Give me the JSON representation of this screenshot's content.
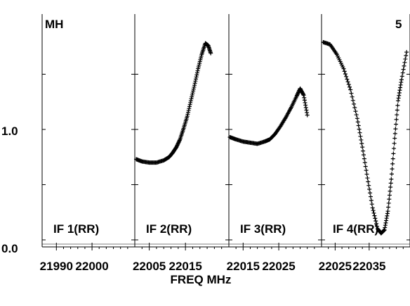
{
  "chart_data": {
    "type": "scatter",
    "ylabel_ticks": [
      "0.0",
      "1.0"
    ],
    "xlabel": "FREQ MHz",
    "corner_left": "MH",
    "corner_right": "5",
    "ylim": [
      0.0,
      1.8
    ],
    "panels": [
      {
        "label": "IF 1(RR)",
        "xlim": [
          21986,
          22012
        ],
        "ticks": [
          "21990",
          "22000"
        ],
        "tick_values": [
          21990,
          22000
        ],
        "minor_ticks": [
          21992,
          21994,
          21996,
          21998,
          22002,
          22004,
          22006,
          22008,
          22010
        ],
        "points": []
      },
      {
        "label": "IF 2(RR)",
        "xlim": [
          22001,
          22027
        ],
        "ticks": [
          "22005",
          "22015"
        ],
        "tick_values": [
          22005,
          22015
        ],
        "minor_ticks": [
          22003,
          22007,
          22009,
          22011,
          22013,
          22017,
          22019,
          22021,
          22023,
          22025
        ],
        "points": [
          [
            22001.4,
            0.73
          ],
          [
            22003.0,
            0.71
          ],
          [
            22005.0,
            0.7
          ],
          [
            22007.0,
            0.7
          ],
          [
            22009.0,
            0.72
          ],
          [
            22010.5,
            0.75
          ],
          [
            22011.5,
            0.79
          ],
          [
            22012.5,
            0.84
          ],
          [
            22013.5,
            0.91
          ],
          [
            22014.5,
            1.01
          ],
          [
            22015.5,
            1.12
          ],
          [
            22016.5,
            1.26
          ],
          [
            22017.5,
            1.4
          ],
          [
            22018.5,
            1.55
          ],
          [
            22019.5,
            1.68
          ],
          [
            22020.5,
            1.78
          ],
          [
            22021.3,
            1.76
          ],
          [
            22022.0,
            1.69
          ]
        ]
      },
      {
        "label": "IF 3(RR)",
        "xlim": [
          22011,
          22037
        ],
        "ticks": [
          "22025",
          "22015"
        ],
        "tick_values": [
          22025,
          22015
        ],
        "minor_ticks": [
          22013,
          22017,
          22019,
          22021,
          22023,
          22027,
          22029,
          22031,
          22033,
          22035
        ],
        "points": [
          [
            22011.3,
            0.93
          ],
          [
            22013.0,
            0.91
          ],
          [
            22015.0,
            0.89
          ],
          [
            22017.0,
            0.88
          ],
          [
            22019.0,
            0.87
          ],
          [
            22021.0,
            0.89
          ],
          [
            22022.5,
            0.91
          ],
          [
            22024.0,
            0.96
          ],
          [
            22025.5,
            1.03
          ],
          [
            22027.0,
            1.11
          ],
          [
            22028.5,
            1.2
          ],
          [
            22030.0,
            1.3
          ],
          [
            22031.0,
            1.37
          ],
          [
            22032.0,
            1.31
          ],
          [
            22033.0,
            1.13
          ]
        ]
      },
      {
        "label": "IF 4(RR)",
        "xlim": [
          22021,
          22047
        ],
        "ticks": [
          "22025",
          "22035"
        ],
        "tick_values": [
          22025,
          22035
        ],
        "minor_ticks": [
          22023,
          22027,
          22029,
          22031,
          22033,
          22037,
          22039,
          22041,
          22043,
          22045
        ],
        "points": [
          [
            22021.5,
            1.79
          ],
          [
            22023.5,
            1.77
          ],
          [
            22025.5,
            1.68
          ],
          [
            22027.5,
            1.55
          ],
          [
            22029.5,
            1.36
          ],
          [
            22031.5,
            1.1
          ],
          [
            22033.0,
            0.84
          ],
          [
            22034.5,
            0.56
          ],
          [
            22036.0,
            0.29
          ],
          [
            22037.5,
            0.1
          ],
          [
            22038.5,
            0.06
          ],
          [
            22039.5,
            0.09
          ],
          [
            22040.5,
            0.26
          ],
          [
            22041.5,
            0.55
          ],
          [
            22042.5,
            0.92
          ],
          [
            22043.5,
            1.26
          ],
          [
            22044.5,
            1.45
          ],
          [
            22046.0,
            1.7
          ]
        ]
      }
    ]
  }
}
